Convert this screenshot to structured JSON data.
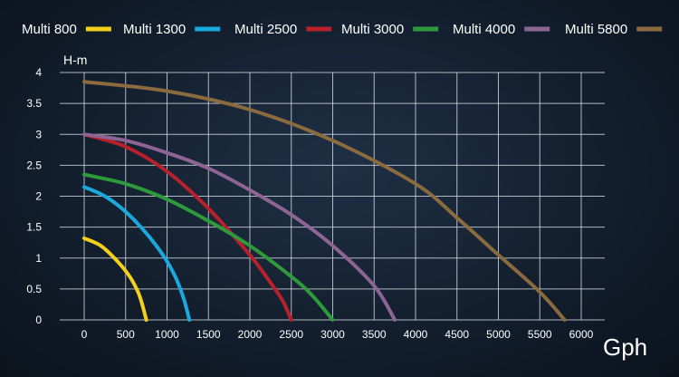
{
  "chart_data": {
    "type": "line",
    "ylabel": "H-m",
    "xlabel": "Gph",
    "xlim": [
      0,
      6000
    ],
    "ylim": [
      0,
      4
    ],
    "x_ticks": [
      "0",
      "500",
      "1000",
      "1500",
      "2000",
      "2500",
      "3000",
      "3500",
      "4000",
      "4500",
      "5000",
      "5500",
      "6000"
    ],
    "y_ticks": [
      "0",
      "0.5",
      "1",
      "1.5",
      "2",
      "2.5",
      "3",
      "3.5",
      "4"
    ],
    "grid": true,
    "legend_position": "top",
    "series": [
      {
        "name": "Multi 800",
        "color": "#f4d01c",
        "x": [
          0,
          200,
          400,
          550,
          650,
          700,
          750
        ],
        "y": [
          1.32,
          1.2,
          0.95,
          0.7,
          0.45,
          0.25,
          0
        ]
      },
      {
        "name": "Multi 1300",
        "color": "#1aa9dc",
        "x": [
          0,
          250,
          500,
          750,
          950,
          1100,
          1200,
          1270
        ],
        "y": [
          2.15,
          2.0,
          1.75,
          1.4,
          1.05,
          0.7,
          0.35,
          0
        ]
      },
      {
        "name": "Multi 2500",
        "color": "#b8202c",
        "x": [
          0,
          500,
          1000,
          1500,
          2000,
          2250,
          2400,
          2500
        ],
        "y": [
          3.0,
          2.8,
          2.4,
          1.8,
          1.05,
          0.6,
          0.3,
          0
        ]
      },
      {
        "name": "Multi 3000",
        "color": "#2e9a3c",
        "x": [
          0,
          500,
          1000,
          1500,
          2000,
          2500,
          2750,
          3000
        ],
        "y": [
          2.35,
          2.2,
          1.95,
          1.6,
          1.2,
          0.7,
          0.4,
          0
        ]
      },
      {
        "name": "Multi 4000",
        "color": "#8d6494",
        "x": [
          0,
          500,
          1000,
          1500,
          2000,
          2500,
          3000,
          3500,
          3750
        ],
        "y": [
          3.0,
          2.9,
          2.7,
          2.45,
          2.1,
          1.7,
          1.2,
          0.55,
          0
        ]
      },
      {
        "name": "Multi 5800",
        "color": "#8a6a3e",
        "x": [
          0,
          1000,
          2000,
          3000,
          4000,
          4500,
          5000,
          5500,
          5800
        ],
        "y": [
          3.85,
          3.7,
          3.4,
          2.9,
          2.2,
          1.65,
          1.05,
          0.45,
          0
        ]
      }
    ]
  }
}
